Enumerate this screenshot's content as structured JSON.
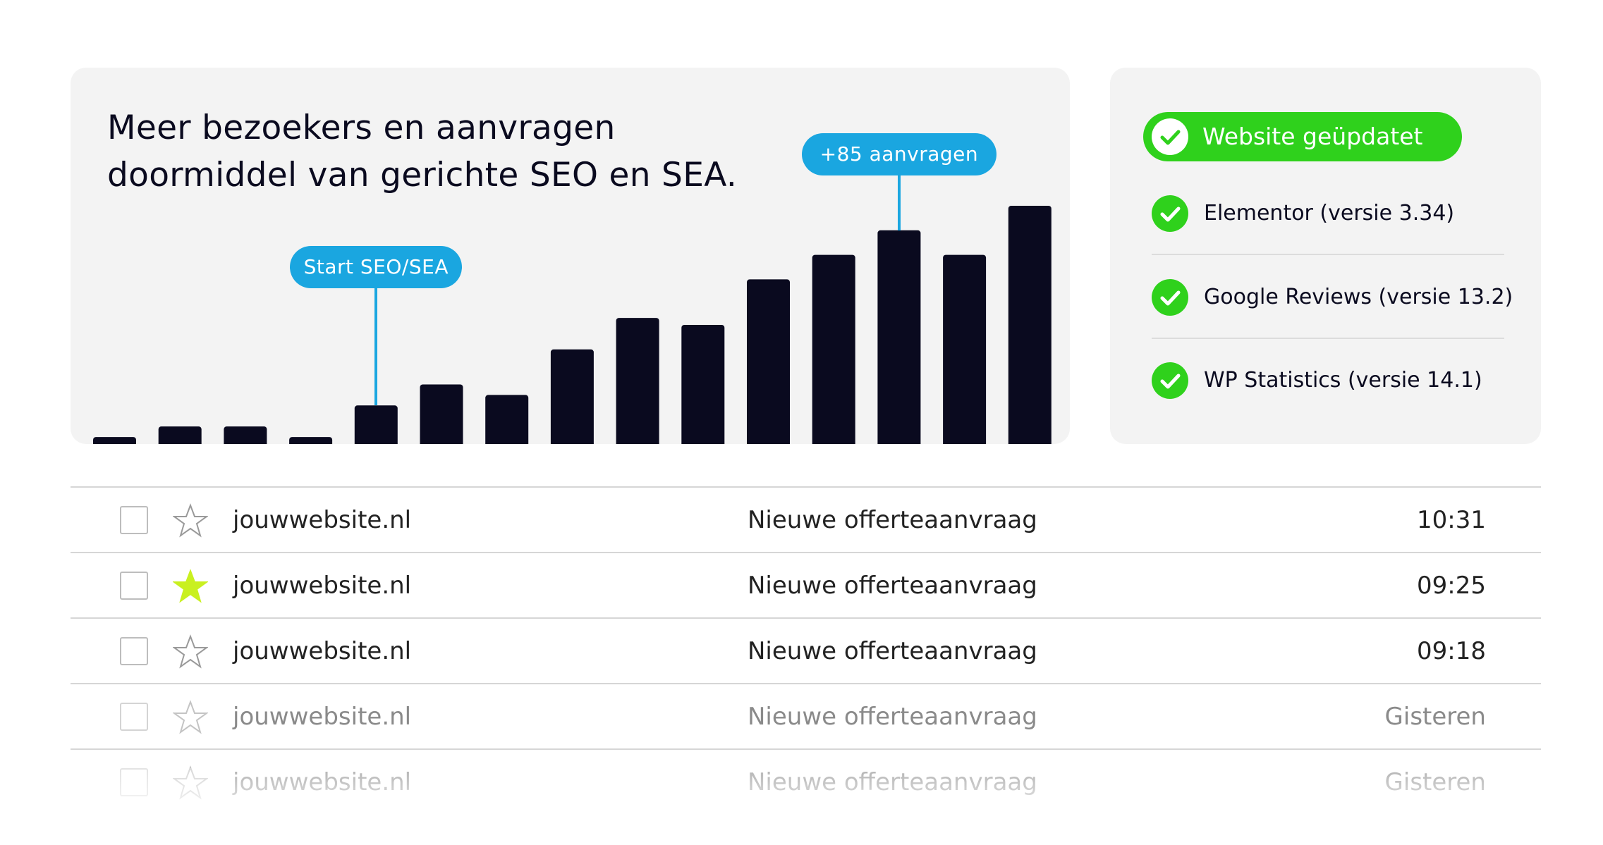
{
  "chart": {
    "title_line1": "Meer bezoekers en aanvragen",
    "title_line2": "doormiddel van gerichte SEO en SEA.",
    "callout_start": "Start SEO/SEA",
    "callout_requests": "+85 aanvragen",
    "bar_color": "#0a0a1f",
    "accent_color": "#1aa6e0"
  },
  "chart_data": {
    "type": "bar",
    "title": "Meer bezoekers en aanvragen doormiddel van gerichte SEO en SEA.",
    "values": [
      2,
      5,
      5,
      2,
      11,
      17,
      14,
      27,
      36,
      34,
      47,
      54,
      61,
      54,
      68
    ],
    "annotations": [
      {
        "label": "Start SEO/SEA",
        "bar_index": 4
      },
      {
        "label": "+85 aanvragen",
        "bar_index": 12
      }
    ]
  },
  "status": {
    "updated_label": "Website geüpdatet",
    "plugins": [
      {
        "label": "Elementor (versie 3.34)"
      },
      {
        "label": "Google Reviews (versie 13.2)"
      },
      {
        "label": "WP Statistics (versie 14.1)"
      }
    ],
    "check_color": "#2fd11c"
  },
  "inbox": {
    "rows": [
      {
        "sender": "jouwwebsite.nl",
        "subject": "Nieuwe offerteaanvraag",
        "time": "10:31",
        "starred": false
      },
      {
        "sender": "jouwwebsite.nl",
        "subject": "Nieuwe offerteaanvraag",
        "time": "09:25",
        "starred": true
      },
      {
        "sender": "jouwwebsite.nl",
        "subject": "Nieuwe offerteaanvraag",
        "time": "09:18",
        "starred": false
      },
      {
        "sender": "jouwwebsite.nl",
        "subject": "Nieuwe offerteaanvraag",
        "time": "Gisteren",
        "starred": false
      },
      {
        "sender": "jouwwebsite.nl",
        "subject": "Nieuwe offerteaanvraag",
        "time": "Gisteren",
        "starred": false
      }
    ],
    "star_active_color": "#c9f020"
  }
}
